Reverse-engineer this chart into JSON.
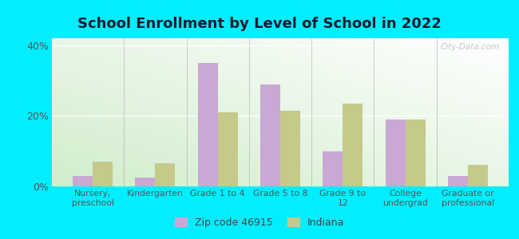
{
  "title": "School Enrollment by Level of School in 2022",
  "categories": [
    "Nursery,\npreschool",
    "Kindergarten",
    "Grade 1 to 4",
    "Grade 5 to 8",
    "Grade 9 to\n12",
    "College\nundergrad",
    "Graduate or\nprofessional"
  ],
  "zip_values": [
    3.0,
    2.5,
    35.0,
    29.0,
    10.0,
    19.0,
    3.0
  ],
  "indiana_values": [
    7.0,
    6.5,
    21.0,
    21.5,
    23.5,
    19.0,
    6.0
  ],
  "zip_color": "#c9a8d4",
  "indiana_color": "#c5c98a",
  "background_outer": "#00eeff",
  "title_fontsize": 13,
  "ylim": [
    0,
    42
  ],
  "yticks": [
    0,
    20,
    40
  ],
  "ytick_labels": [
    "0%",
    "20%",
    "40%"
  ],
  "legend_zip_label": "Zip code 46915",
  "legend_indiana_label": "Indiana",
  "watermark": "City-Data.com"
}
